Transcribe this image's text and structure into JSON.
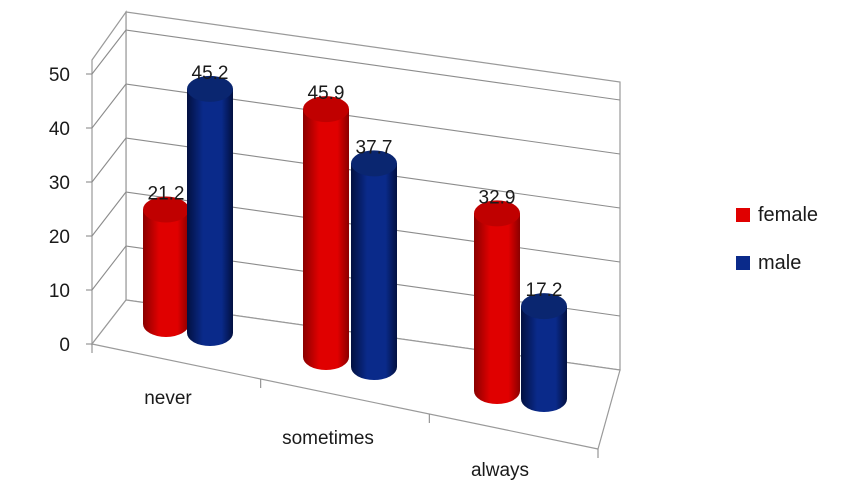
{
  "chart_data": {
    "type": "bar",
    "categories": [
      "never",
      "sometimes",
      "always"
    ],
    "series": [
      {
        "name": "female",
        "values": [
          21.2,
          45.9,
          32.9
        ],
        "color": "#e00000",
        "shade": "#8a0000",
        "top": "#c00000"
      },
      {
        "name": "male",
        "values": [
          45.2,
          37.7,
          17.2
        ],
        "color": "#0a2a8a",
        "shade": "#021040",
        "top": "#0a2670"
      }
    ],
    "ylim": [
      0,
      50
    ],
    "yticks": [
      "0",
      "10",
      "20",
      "30",
      "40",
      "50"
    ],
    "grid": true,
    "legend_position": "right"
  }
}
